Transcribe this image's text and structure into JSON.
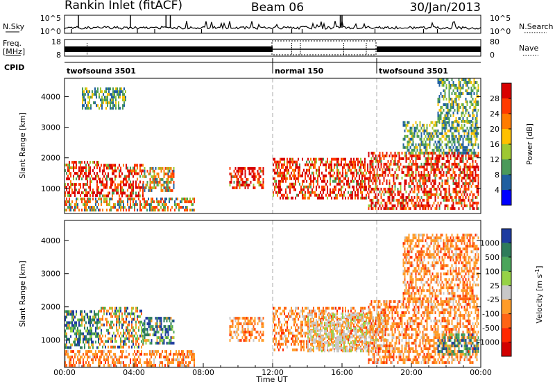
{
  "header": {
    "station": "Rankin Inlet (fitACF)",
    "beam": "Beam 06",
    "date": "30/Jan/2013"
  },
  "nsky_panel": {
    "label": "N.Sky",
    "right_label": "N.Search",
    "left_ticks": [
      "10^5",
      "10^0"
    ],
    "right_ticks": [
      "10^5",
      "10^0"
    ]
  },
  "freq_panel": {
    "label_line1": "Freq.",
    "label_line2": "[MHz]",
    "right_label": "Nave",
    "left_ticks": [
      "18",
      "8"
    ],
    "right_ticks": [
      "80",
      "0"
    ]
  },
  "cpid": {
    "label": "CPID",
    "segments": [
      {
        "name": "twofsound 3501",
        "start_hour": 0,
        "end_hour": 12
      },
      {
        "name": "normal 150",
        "start_hour": 12,
        "end_hour": 18
      },
      {
        "name": "twofsound 3501",
        "start_hour": 18,
        "end_hour": 24
      }
    ]
  },
  "chart_data": [
    {
      "type": "heatmap",
      "title": "",
      "quantity": "Power",
      "xlabel": "",
      "ylabel": "Slant Range [km]",
      "xlim": [
        0,
        24
      ],
      "ylim": [
        180,
        4600
      ],
      "yticks": [
        1000,
        2000,
        3000,
        4000
      ],
      "colorbar": {
        "label": "Power [dB]",
        "ticks": [
          "28",
          "24",
          "20",
          "16",
          "12",
          "8",
          "4"
        ],
        "colors": [
          "#d80000",
          "#ff3a00",
          "#ff7c00",
          "#ffc000",
          "#9ec832",
          "#4a9a5a",
          "#1f5fa0",
          "#0000ff"
        ]
      },
      "echo_regions": [
        {
          "x": [
            0.0,
            2.0
          ],
          "y": [
            800,
            1900
          ],
          "level": "high"
        },
        {
          "x": [
            2.0,
            4.5
          ],
          "y": [
            800,
            1800
          ],
          "level": "high"
        },
        {
          "x": [
            4.5,
            6.3
          ],
          "y": [
            900,
            1700
          ],
          "level": "medium"
        },
        {
          "x": [
            0.0,
            7.5
          ],
          "y": [
            250,
            700
          ],
          "level": "medium"
        },
        {
          "x": [
            1.0,
            3.5
          ],
          "y": [
            3600,
            4300
          ],
          "level": "low"
        },
        {
          "x": [
            9.5,
            11.5
          ],
          "y": [
            1000,
            1700
          ],
          "level": "high"
        },
        {
          "x": [
            12.0,
            17.5
          ],
          "y": [
            700,
            2000
          ],
          "level": "high"
        },
        {
          "x": [
            17.5,
            23.9
          ],
          "y": [
            300,
            2200
          ],
          "level": "high"
        },
        {
          "x": [
            19.5,
            23.9
          ],
          "y": [
            2200,
            3200
          ],
          "level": "low"
        },
        {
          "x": [
            21.5,
            23.9
          ],
          "y": [
            3200,
            4600
          ],
          "level": "low"
        }
      ]
    },
    {
      "type": "heatmap",
      "title": "",
      "quantity": "Velocity",
      "xlabel": "Time UT",
      "ylabel": "Slant Range [km]",
      "xlim": [
        0,
        24
      ],
      "ylim": [
        180,
        4600
      ],
      "xticks": [
        "00:00",
        "04:00",
        "08:00",
        "12:00",
        "16:00",
        "20:00",
        "00:00"
      ],
      "yticks": [
        1000,
        2000,
        3000,
        4000
      ],
      "colorbar": {
        "label": "Velocity [m s^-1]",
        "ticks": [
          "1000",
          "500",
          "100",
          "25",
          "-25",
          "-100",
          "-500",
          "-1000"
        ],
        "colors": [
          "#1e3ca0",
          "#2e7c5a",
          "#4aa55a",
          "#96d246",
          "#c8c8c8",
          "#ff9c28",
          "#ff6414",
          "#ff2800",
          "#d20000"
        ]
      },
      "echo_regions": [
        {
          "x": [
            0.0,
            2.0
          ],
          "y": [
            800,
            1900
          ],
          "level": "toward"
        },
        {
          "x": [
            2.0,
            4.5
          ],
          "y": [
            800,
            2000
          ],
          "level": "mixed"
        },
        {
          "x": [
            4.5,
            6.3
          ],
          "y": [
            900,
            1700
          ],
          "level": "toward"
        },
        {
          "x": [
            0.0,
            7.5
          ],
          "y": [
            250,
            700
          ],
          "level": "away"
        },
        {
          "x": [
            9.5,
            11.5
          ],
          "y": [
            1000,
            1700
          ],
          "level": "away"
        },
        {
          "x": [
            12.0,
            17.5
          ],
          "y": [
            700,
            2000
          ],
          "level": "away"
        },
        {
          "x": [
            14.0,
            18.5
          ],
          "y": [
            700,
            1800
          ],
          "level": "zero"
        },
        {
          "x": [
            17.5,
            23.9
          ],
          "y": [
            300,
            2200
          ],
          "level": "away"
        },
        {
          "x": [
            21.5,
            23.9
          ],
          "y": [
            600,
            1200
          ],
          "level": "toward"
        },
        {
          "x": [
            19.5,
            23.9
          ],
          "y": [
            2200,
            4200
          ],
          "level": "away"
        }
      ]
    }
  ]
}
